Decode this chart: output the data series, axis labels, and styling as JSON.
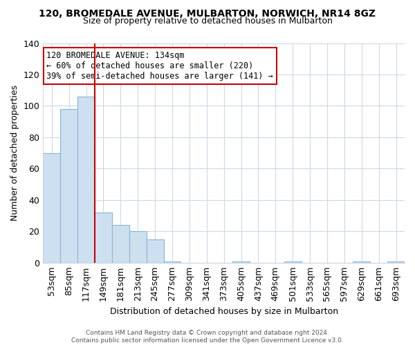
{
  "title": "120, BROMEDALE AVENUE, MULBARTON, NORWICH, NR14 8GZ",
  "subtitle": "Size of property relative to detached houses in Mulbarton",
  "xlabel": "Distribution of detached houses by size in Mulbarton",
  "ylabel": "Number of detached properties",
  "bar_color": "#cce0f0",
  "bar_edge_color": "#8ab4d4",
  "categories": [
    "53sqm",
    "85sqm",
    "117sqm",
    "149sqm",
    "181sqm",
    "213sqm",
    "245sqm",
    "277sqm",
    "309sqm",
    "341sqm",
    "373sqm",
    "405sqm",
    "437sqm",
    "469sqm",
    "501sqm",
    "533sqm",
    "565sqm",
    "597sqm",
    "629sqm",
    "661sqm",
    "693sqm"
  ],
  "values": [
    70,
    98,
    106,
    32,
    24,
    20,
    15,
    1,
    0,
    0,
    0,
    1,
    0,
    0,
    1,
    0,
    0,
    0,
    1,
    0,
    1
  ],
  "ylim": [
    0,
    140
  ],
  "yticks": [
    0,
    20,
    40,
    60,
    80,
    100,
    120,
    140
  ],
  "vline_x_index": 2.5,
  "vline_color": "#cc0000",
  "annotation_text": "120 BROMEDALE AVENUE: 134sqm\n← 60% of detached houses are smaller (220)\n39% of semi-detached houses are larger (141) →",
  "annotation_box_color": "#ffffff",
  "annotation_box_edge": "#cc0000",
  "footer1": "Contains HM Land Registry data © Crown copyright and database right 2024.",
  "footer2": "Contains public sector information licensed under the Open Government Licence v3.0.",
  "background_color": "#ffffff",
  "grid_color": "#ccd8e8"
}
